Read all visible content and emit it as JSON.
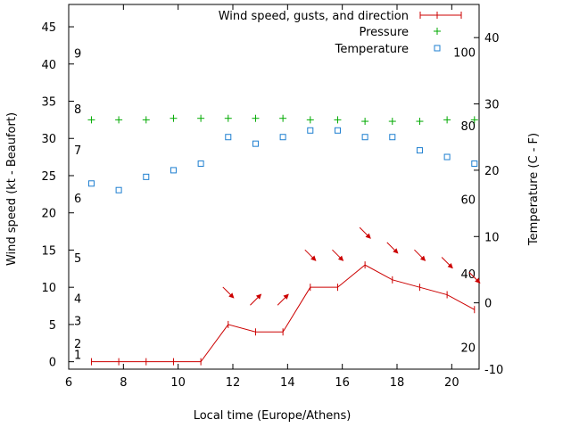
{
  "chart_data": {
    "type": "line",
    "title": "",
    "xlabel": "Local time (Europe/Athens)",
    "ylabel": "Wind speed (kt - Beaufort)",
    "y2label": "Temperature (C - F)",
    "xlim": [
      6,
      21
    ],
    "ylim": [
      -1,
      48
    ],
    "y2lim": [
      -10,
      45
    ],
    "x_ticks": [
      6,
      8,
      10,
      12,
      14,
      16,
      18,
      20
    ],
    "y_ticks": [
      0,
      5,
      10,
      15,
      20,
      25,
      30,
      35,
      40,
      45
    ],
    "y2_ticks": [
      -10,
      0,
      10,
      20,
      30,
      40
    ],
    "beaufort_labels": [
      {
        "value": 1,
        "label": "1"
      },
      {
        "value": 2.5,
        "label": "2"
      },
      {
        "value": 5.5,
        "label": "3"
      },
      {
        "value": 8.5,
        "label": "4"
      },
      {
        "value": 14,
        "label": "5"
      },
      {
        "value": 22,
        "label": "6"
      },
      {
        "value": 28.5,
        "label": "7"
      },
      {
        "value": 34,
        "label": "8"
      },
      {
        "value": 41.5,
        "label": "9"
      }
    ],
    "fahrenheit_labels": [
      {
        "value": -6.7,
        "label": "20"
      },
      {
        "value": 4.4,
        "label": "40"
      },
      {
        "value": 15.6,
        "label": "60"
      },
      {
        "value": 26.7,
        "label": "80"
      },
      {
        "value": 37.8,
        "label": "100"
      }
    ],
    "series": [
      {
        "name": "Wind speed, gusts, and direction",
        "axis": "y",
        "style": "line-cross",
        "color": "#cc0000",
        "x": [
          6.83,
          7.83,
          8.83,
          9.83,
          10.83,
          11.83,
          12.83,
          13.83,
          14.83,
          15.83,
          16.83,
          17.83,
          18.83,
          19.83,
          20.83
        ],
        "values": [
          0,
          0,
          0,
          0,
          0,
          5,
          4,
          4,
          10,
          10,
          13,
          11,
          10,
          9,
          7
        ],
        "direction_arrows": [
          {
            "x": 11.83,
            "dir": "SE"
          },
          {
            "x": 12.83,
            "dir": "NE"
          },
          {
            "x": 13.83,
            "dir": "NE"
          },
          {
            "x": 14.83,
            "dir": "SE"
          },
          {
            "x": 15.83,
            "dir": "SE"
          },
          {
            "x": 16.83,
            "dir": "SE"
          },
          {
            "x": 17.83,
            "dir": "SE"
          },
          {
            "x": 18.83,
            "dir": "SE"
          },
          {
            "x": 19.83,
            "dir": "SE"
          },
          {
            "x": 20.83,
            "dir": "SE"
          }
        ]
      },
      {
        "name": "Pressure",
        "axis": "y",
        "style": "plus",
        "color": "#00aa00",
        "x": [
          6.83,
          7.83,
          8.83,
          9.83,
          10.83,
          11.83,
          12.83,
          13.83,
          14.83,
          15.83,
          16.83,
          17.83,
          18.83,
          19.83,
          20.83
        ],
        "values": [
          32.5,
          32.5,
          32.5,
          32.7,
          32.7,
          32.7,
          32.7,
          32.7,
          32.5,
          32.5,
          32.3,
          32.3,
          32.3,
          32.5,
          32.5
        ]
      },
      {
        "name": "Temperature",
        "axis": "y2",
        "style": "square",
        "color": "#1e7fd0",
        "x": [
          6.83,
          7.83,
          8.83,
          9.83,
          10.83,
          11.83,
          12.83,
          13.83,
          14.83,
          15.83,
          16.83,
          17.83,
          18.83,
          19.83,
          20.83
        ],
        "values": [
          18,
          17,
          19,
          20,
          21,
          25,
          24,
          25,
          26,
          26,
          25,
          25,
          23,
          22,
          21
        ]
      }
    ]
  }
}
